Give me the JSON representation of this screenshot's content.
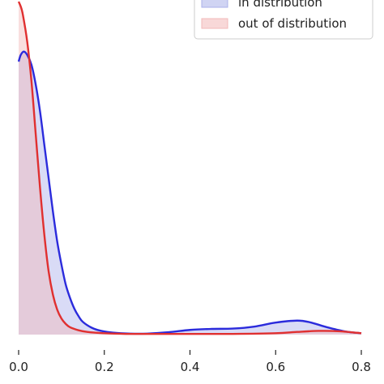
{
  "chart_data": {
    "type": "area",
    "xlim": [
      0.0,
      0.8
    ],
    "ylim": [
      0,
      1.0
    ],
    "x_ticks": [
      "0.0",
      "0.2",
      "0.4",
      "0.6",
      "0.8"
    ],
    "x_tick_values": [
      0.0,
      0.2,
      0.4,
      0.6,
      0.8
    ],
    "xlabel": "",
    "ylabel": "",
    "legend_position": "top-right",
    "grid": false,
    "series": [
      {
        "name": "in distribution",
        "line_color": "#2b2bdc",
        "fill_color": "#aab0ea",
        "points": [
          [
            0.0,
            0.82
          ],
          [
            0.005,
            0.84
          ],
          [
            0.012,
            0.85
          ],
          [
            0.02,
            0.84
          ],
          [
            0.03,
            0.81
          ],
          [
            0.04,
            0.75
          ],
          [
            0.05,
            0.67
          ],
          [
            0.06,
            0.57
          ],
          [
            0.07,
            0.47
          ],
          [
            0.08,
            0.37
          ],
          [
            0.09,
            0.28
          ],
          [
            0.1,
            0.21
          ],
          [
            0.11,
            0.15
          ],
          [
            0.12,
            0.11
          ],
          [
            0.13,
            0.078
          ],
          [
            0.14,
            0.055
          ],
          [
            0.15,
            0.038
          ],
          [
            0.17,
            0.021
          ],
          [
            0.19,
            0.012
          ],
          [
            0.22,
            0.006
          ],
          [
            0.26,
            0.003
          ],
          [
            0.3,
            0.003
          ],
          [
            0.35,
            0.007
          ],
          [
            0.4,
            0.014
          ],
          [
            0.45,
            0.017
          ],
          [
            0.5,
            0.018
          ],
          [
            0.55,
            0.024
          ],
          [
            0.6,
            0.036
          ],
          [
            0.65,
            0.042
          ],
          [
            0.68,
            0.037
          ],
          [
            0.72,
            0.022
          ],
          [
            0.76,
            0.01
          ],
          [
            0.8,
            0.004
          ]
        ]
      },
      {
        "name": "out of distribution",
        "line_color": "#e03030",
        "fill_color": "#f2b8b8",
        "points": [
          [
            0.0,
            1.0
          ],
          [
            0.005,
            0.985
          ],
          [
            0.01,
            0.96
          ],
          [
            0.02,
            0.88
          ],
          [
            0.03,
            0.76
          ],
          [
            0.04,
            0.6
          ],
          [
            0.05,
            0.44
          ],
          [
            0.06,
            0.3
          ],
          [
            0.07,
            0.19
          ],
          [
            0.08,
            0.12
          ],
          [
            0.09,
            0.075
          ],
          [
            0.1,
            0.048
          ],
          [
            0.11,
            0.032
          ],
          [
            0.12,
            0.022
          ],
          [
            0.14,
            0.013
          ],
          [
            0.16,
            0.008
          ],
          [
            0.2,
            0.004
          ],
          [
            0.25,
            0.002
          ],
          [
            0.3,
            0.002
          ],
          [
            0.4,
            0.002
          ],
          [
            0.5,
            0.002
          ],
          [
            0.6,
            0.004
          ],
          [
            0.65,
            0.008
          ],
          [
            0.7,
            0.011
          ],
          [
            0.75,
            0.01
          ],
          [
            0.8,
            0.004
          ]
        ]
      }
    ]
  }
}
